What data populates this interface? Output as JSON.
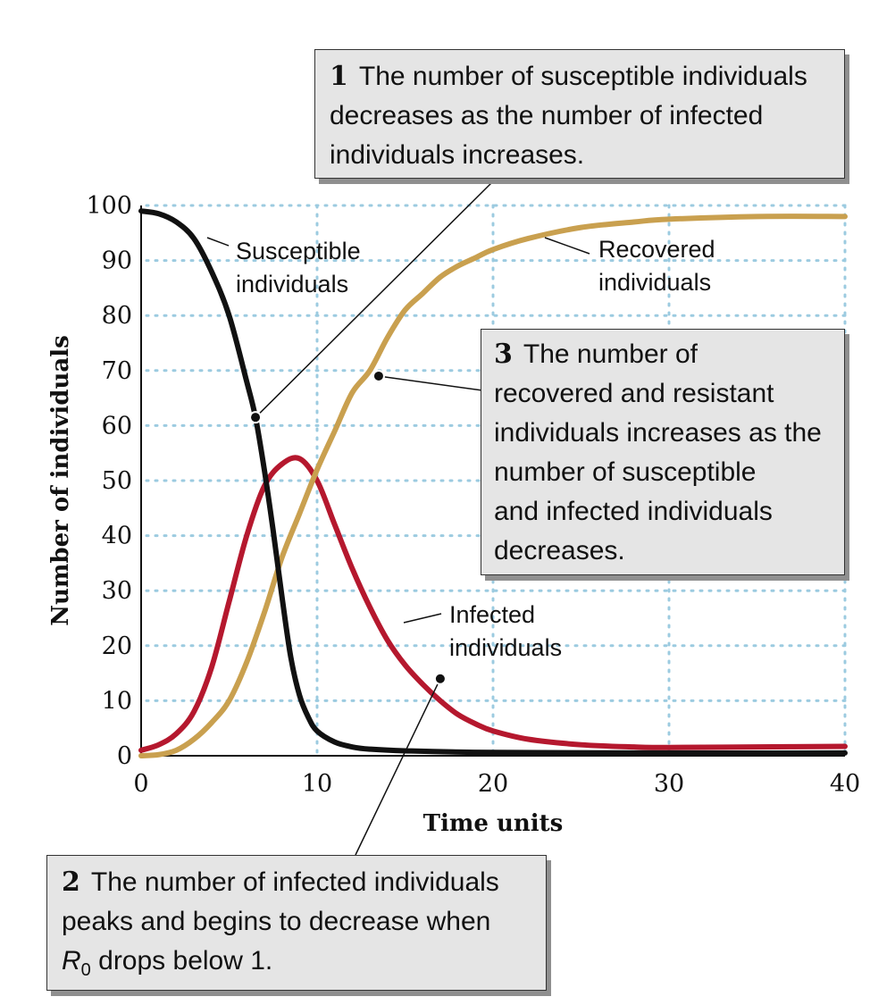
{
  "chart_data": {
    "type": "line",
    "xlabel": "Time units",
    "ylabel": "Number of individuals",
    "xlim": [
      0,
      40
    ],
    "ylim": [
      0,
      100
    ],
    "x_ticks": [
      "0",
      "10",
      "20",
      "30",
      "40"
    ],
    "y_ticks": [
      "0",
      "10",
      "20",
      "30",
      "40",
      "50",
      "60",
      "70",
      "80",
      "90",
      "100"
    ],
    "grid": true,
    "series": [
      {
        "key": "susceptible",
        "color": "#111111",
        "label_lines": [
          "Susceptible",
          "individuals"
        ],
        "points": [
          [
            0,
            99
          ],
          [
            1,
            98.5
          ],
          [
            2,
            97
          ],
          [
            3,
            94
          ],
          [
            4,
            88
          ],
          [
            5,
            80
          ],
          [
            6,
            68
          ],
          [
            6.5,
            61.5
          ],
          [
            7,
            52
          ],
          [
            7.5,
            41
          ],
          [
            8,
            29
          ],
          [
            8.5,
            18
          ],
          [
            9,
            11
          ],
          [
            9.5,
            7
          ],
          [
            10,
            4.5
          ],
          [
            11,
            2.5
          ],
          [
            12,
            1.6
          ],
          [
            13,
            1.2
          ],
          [
            15,
            0.9
          ],
          [
            20,
            0.6
          ],
          [
            30,
            0.5
          ],
          [
            40,
            0.5
          ]
        ]
      },
      {
        "key": "infected",
        "color": "#b5182e",
        "label_lines": [
          "Infected",
          "individuals"
        ],
        "points": [
          [
            0,
            1
          ],
          [
            1,
            2
          ],
          [
            2,
            4
          ],
          [
            3,
            8
          ],
          [
            4,
            16
          ],
          [
            5,
            28
          ],
          [
            6,
            40
          ],
          [
            7,
            49
          ],
          [
            8,
            53
          ],
          [
            9,
            54
          ],
          [
            10,
            50
          ],
          [
            11,
            42
          ],
          [
            12,
            34
          ],
          [
            13,
            27
          ],
          [
            14,
            21
          ],
          [
            15,
            16.5
          ],
          [
            16,
            13
          ],
          [
            17,
            10
          ],
          [
            18,
            7.5
          ],
          [
            19,
            5.8
          ],
          [
            20,
            4.5
          ],
          [
            22,
            3
          ],
          [
            25,
            2
          ],
          [
            28,
            1.6
          ],
          [
            30,
            1.5
          ],
          [
            35,
            1.6
          ],
          [
            40,
            1.7
          ]
        ]
      },
      {
        "key": "recovered",
        "color": "#c9a04f",
        "label_lines": [
          "Recovered",
          "individuals"
        ],
        "points": [
          [
            0,
            0
          ],
          [
            1,
            0.2
          ],
          [
            2,
            1
          ],
          [
            3,
            3
          ],
          [
            4,
            6
          ],
          [
            5,
            10
          ],
          [
            6,
            17
          ],
          [
            7,
            26
          ],
          [
            8,
            36
          ],
          [
            9,
            44
          ],
          [
            10,
            52
          ],
          [
            11,
            59
          ],
          [
            12,
            66
          ],
          [
            13,
            70
          ],
          [
            14,
            76
          ],
          [
            15,
            81
          ],
          [
            16,
            84
          ],
          [
            17,
            87
          ],
          [
            18,
            89
          ],
          [
            19,
            90.5
          ],
          [
            20,
            92
          ],
          [
            22,
            94
          ],
          [
            25,
            96
          ],
          [
            28,
            97
          ],
          [
            30,
            97.5
          ],
          [
            35,
            98
          ],
          [
            40,
            98
          ]
        ]
      }
    ],
    "markers": [
      {
        "series": "susceptible",
        "x": 6.5,
        "y": 61.5,
        "callout": "1"
      },
      {
        "series": "infected",
        "x": 17,
        "y": 14,
        "callout": "2"
      },
      {
        "series": "recovered",
        "x": 13.5,
        "y": 69,
        "callout": "3"
      }
    ]
  },
  "callouts": {
    "c1": {
      "number": "1",
      "lines": [
        "The number of susceptible individuals",
        "decreases as the number of infected",
        "individuals increases."
      ]
    },
    "c2": {
      "number": "2",
      "lines": [
        "The number of infected individuals",
        "peaks and begins to decrease when"
      ],
      "line3_symbol": "R",
      "line3_subscript": "0",
      "line3_rest": " drops below 1."
    },
    "c3": {
      "number": "3",
      "lines": [
        "The number of",
        "recovered and resistant",
        "individuals increases as the",
        "number of susceptible",
        "and infected individuals",
        "decreases."
      ]
    }
  }
}
